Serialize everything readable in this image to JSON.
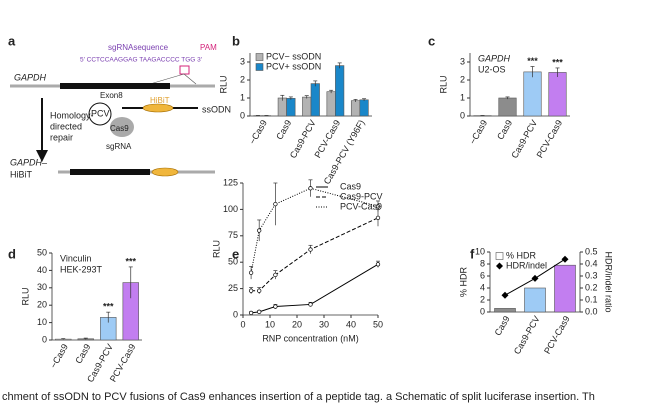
{
  "diagram": {
    "panel": "a",
    "labels": {
      "sgrna": "sgRNAsequence",
      "pam": "PAM",
      "sequence": "5′ CCTCCAAGGAG TAAGACCCC TGG 3′",
      "gene": "GAPDH",
      "exon": "Exon8",
      "ssodn": "ssODN",
      "repair": [
        "Homology-",
        "directed",
        "repair"
      ],
      "pcv": "PCV",
      "hibit": "HiBiT",
      "cas9": "Cas9",
      "guide": "sgRNA",
      "product": [
        "GAPDH–",
        "HiBiT"
      ]
    }
  },
  "chart_data": [
    {
      "type": "bar",
      "panel": "b",
      "y_label": "RLU",
      "categories": [
        "−Cas9",
        "Cas9",
        "Cas9-PCV",
        "PCV-Cas9",
        "Cas9-PCV (Y96F)"
      ],
      "series": [
        {
          "name": "PCV− ssODN",
          "color": "#b3b3b3",
          "values": [
            0.02,
            1.0,
            1.05,
            1.35,
            0.85
          ],
          "errors": [
            0.01,
            0.15,
            0.08,
            0.08,
            0.07
          ]
        },
        {
          "name": "PCV+ ssODN",
          "color": "#1a87c9",
          "values": [
            0.02,
            0.98,
            1.8,
            2.8,
            0.9
          ],
          "errors": [
            0.01,
            0.08,
            0.15,
            0.15,
            0.06
          ]
        }
      ],
      "ylim": [
        0,
        3.5
      ],
      "yticks": [
        0,
        1,
        2,
        3
      ],
      "legend": "upper left"
    },
    {
      "type": "bar",
      "panel": "c",
      "y_label": "RLU",
      "annotations": [
        "GAPDH",
        "U2-OS"
      ],
      "categories": [
        "−Cas9",
        "Cas9",
        "Cas9-PCV",
        "PCV-Cas9"
      ],
      "values": [
        0.02,
        1.0,
        2.45,
        2.42
      ],
      "errors": [
        0.01,
        0.06,
        0.3,
        0.25
      ],
      "colors": [
        "#ffffff",
        "#8c8c8c",
        "#9ecbf5",
        "#c27ef0"
      ],
      "value_annotations": [
        null,
        null,
        "***",
        "***"
      ],
      "ylim": [
        0,
        3.5
      ],
      "yticks": [
        0,
        1,
        2,
        3
      ]
    },
    {
      "type": "bar",
      "panel": "d",
      "y_label": "RLU",
      "annotations": [
        "Vinculin",
        "HEK-293T"
      ],
      "categories": [
        "−Cas9",
        "Cas9",
        "Cas9-PCV",
        "PCV-Cas9"
      ],
      "values": [
        0.5,
        0.7,
        13,
        33
      ],
      "errors": [
        0.3,
        0.4,
        3,
        9
      ],
      "colors": [
        "#ffffff",
        "#8c8c8c",
        "#9ecbf5",
        "#c27ef0"
      ],
      "value_annotations": [
        null,
        null,
        "***",
        "***"
      ],
      "ylim": [
        0,
        50
      ],
      "yticks": [
        0,
        10,
        20,
        30,
        40,
        50
      ]
    },
    {
      "type": "line",
      "panel": "e",
      "y_label": "RLU",
      "x_label": "RNP concentration (nM)",
      "x": [
        3,
        6,
        12,
        25,
        50
      ],
      "series": [
        {
          "name": "Cas9",
          "color": "#000000",
          "dash": "solid",
          "values": [
            2,
            3,
            8,
            10,
            48
          ],
          "errors": [
            1,
            1,
            2,
            2,
            3
          ]
        },
        {
          "name": "Cas9-PCV",
          "color": "#000000",
          "dash": "dashed",
          "values": [
            23,
            23,
            38,
            62,
            92
          ],
          "errors": [
            3,
            3,
            4,
            4,
            8
          ]
        },
        {
          "name": "PCV-Cas9",
          "color": "#000000",
          "dash": "dotted",
          "values": [
            40,
            80,
            105,
            120,
            103
          ],
          "errors": [
            6,
            10,
            20,
            8,
            5
          ]
        }
      ],
      "xlim": [
        0,
        50
      ],
      "xticks": [
        0,
        10,
        20,
        30,
        40,
        50
      ],
      "ylim": [
        0,
        125
      ],
      "yticks": [
        0,
        25,
        50,
        75,
        100,
        125
      ],
      "legend": "upper right"
    },
    {
      "type": "bar",
      "panel": "f",
      "y_label": "% HDR",
      "y2_label": "HDR/indel ratio",
      "categories": [
        "Cas9",
        "Cas9-PCV",
        "PCV-Cas9"
      ],
      "series": [
        {
          "name": "% HDR",
          "color": "#ffffff",
          "colors": [
            "#8c8c8c",
            "#9ecbf5",
            "#c27ef0"
          ],
          "values": [
            0.6,
            4.0,
            7.8
          ]
        },
        {
          "name": "HDR/indel",
          "type": "line",
          "axis": "y2",
          "color": "#000000",
          "dash": "solid",
          "marker": "diamond",
          "values": [
            0.14,
            0.28,
            0.44
          ]
        }
      ],
      "ylim": [
        0,
        10
      ],
      "yticks": [
        0,
        2,
        4,
        6,
        8,
        10
      ],
      "y2lim": [
        0,
        0.5
      ],
      "y2ticks": [
        {
          "value": 0,
          "label": "0.0"
        },
        0.1,
        0.2,
        0.3,
        0.4,
        0.5
      ],
      "legend": "upper left"
    }
  ],
  "caption": "chment of ssODN to PCV fusions of Cas9 enhances insertion of a peptide tag. a Schematic of split luciferase insertion. Th"
}
